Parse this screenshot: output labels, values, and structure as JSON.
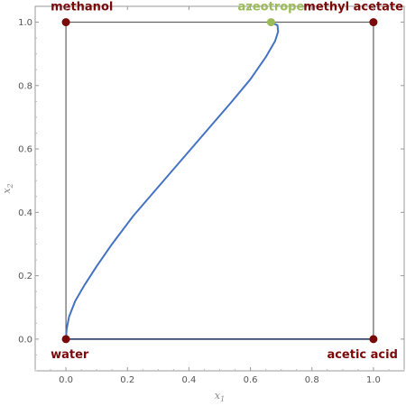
{
  "chart_data": {
    "type": "line",
    "title": "",
    "xlabel": "x",
    "xlabel_sub": "1",
    "ylabel": "x",
    "ylabel_sub": "2",
    "xlim": [
      -0.1,
      1.1
    ],
    "ylim": [
      -0.1,
      1.05
    ],
    "xticks": [
      "0.0",
      "0.2",
      "0.4",
      "0.6",
      "0.8",
      "1.0"
    ],
    "yticks": [
      "0.0",
      "0.2",
      "0.4",
      "0.6",
      "0.8",
      "1.0"
    ],
    "grid": false,
    "square": {
      "edges": [
        [
          0,
          0
        ],
        [
          1,
          0
        ],
        [
          1,
          1
        ],
        [
          0,
          1
        ]
      ],
      "color": "#444444"
    },
    "corners": [
      {
        "label": "water",
        "x": 0,
        "y": 0,
        "color": "#7a0a0a",
        "label_position": "below-right"
      },
      {
        "label": "acetic acid",
        "x": 1,
        "y": 0,
        "color": "#7a0a0a",
        "label_position": "below-left"
      },
      {
        "label": "methanol",
        "x": 0,
        "y": 1,
        "color": "#7a0a0a",
        "label_position": "above-right"
      },
      {
        "label": "methyl acetate",
        "x": 1,
        "y": 1,
        "color": "#7a0a0a",
        "label_position": "above-left"
      }
    ],
    "azeotrope": {
      "label": "azeotrope",
      "x": 0.667,
      "y": 1.0,
      "color": "#9bbb59"
    },
    "series": [
      {
        "color": "#4472c4",
        "x": [
          0.0,
          0.002,
          0.01,
          0.03,
          0.06,
          0.1,
          0.15,
          0.22,
          0.3,
          0.38,
          0.46,
          0.54,
          0.6,
          0.65,
          0.68,
          0.69,
          0.688,
          0.667
        ],
        "y": [
          0.0,
          0.03,
          0.07,
          0.12,
          0.17,
          0.23,
          0.3,
          0.39,
          0.48,
          0.57,
          0.66,
          0.75,
          0.82,
          0.89,
          0.94,
          0.97,
          0.99,
          1.0
        ]
      },
      {
        "color": "#1a2f5a",
        "x": [
          0.0,
          1.0
        ],
        "y": [
          0.0,
          0.0
        ]
      }
    ]
  }
}
